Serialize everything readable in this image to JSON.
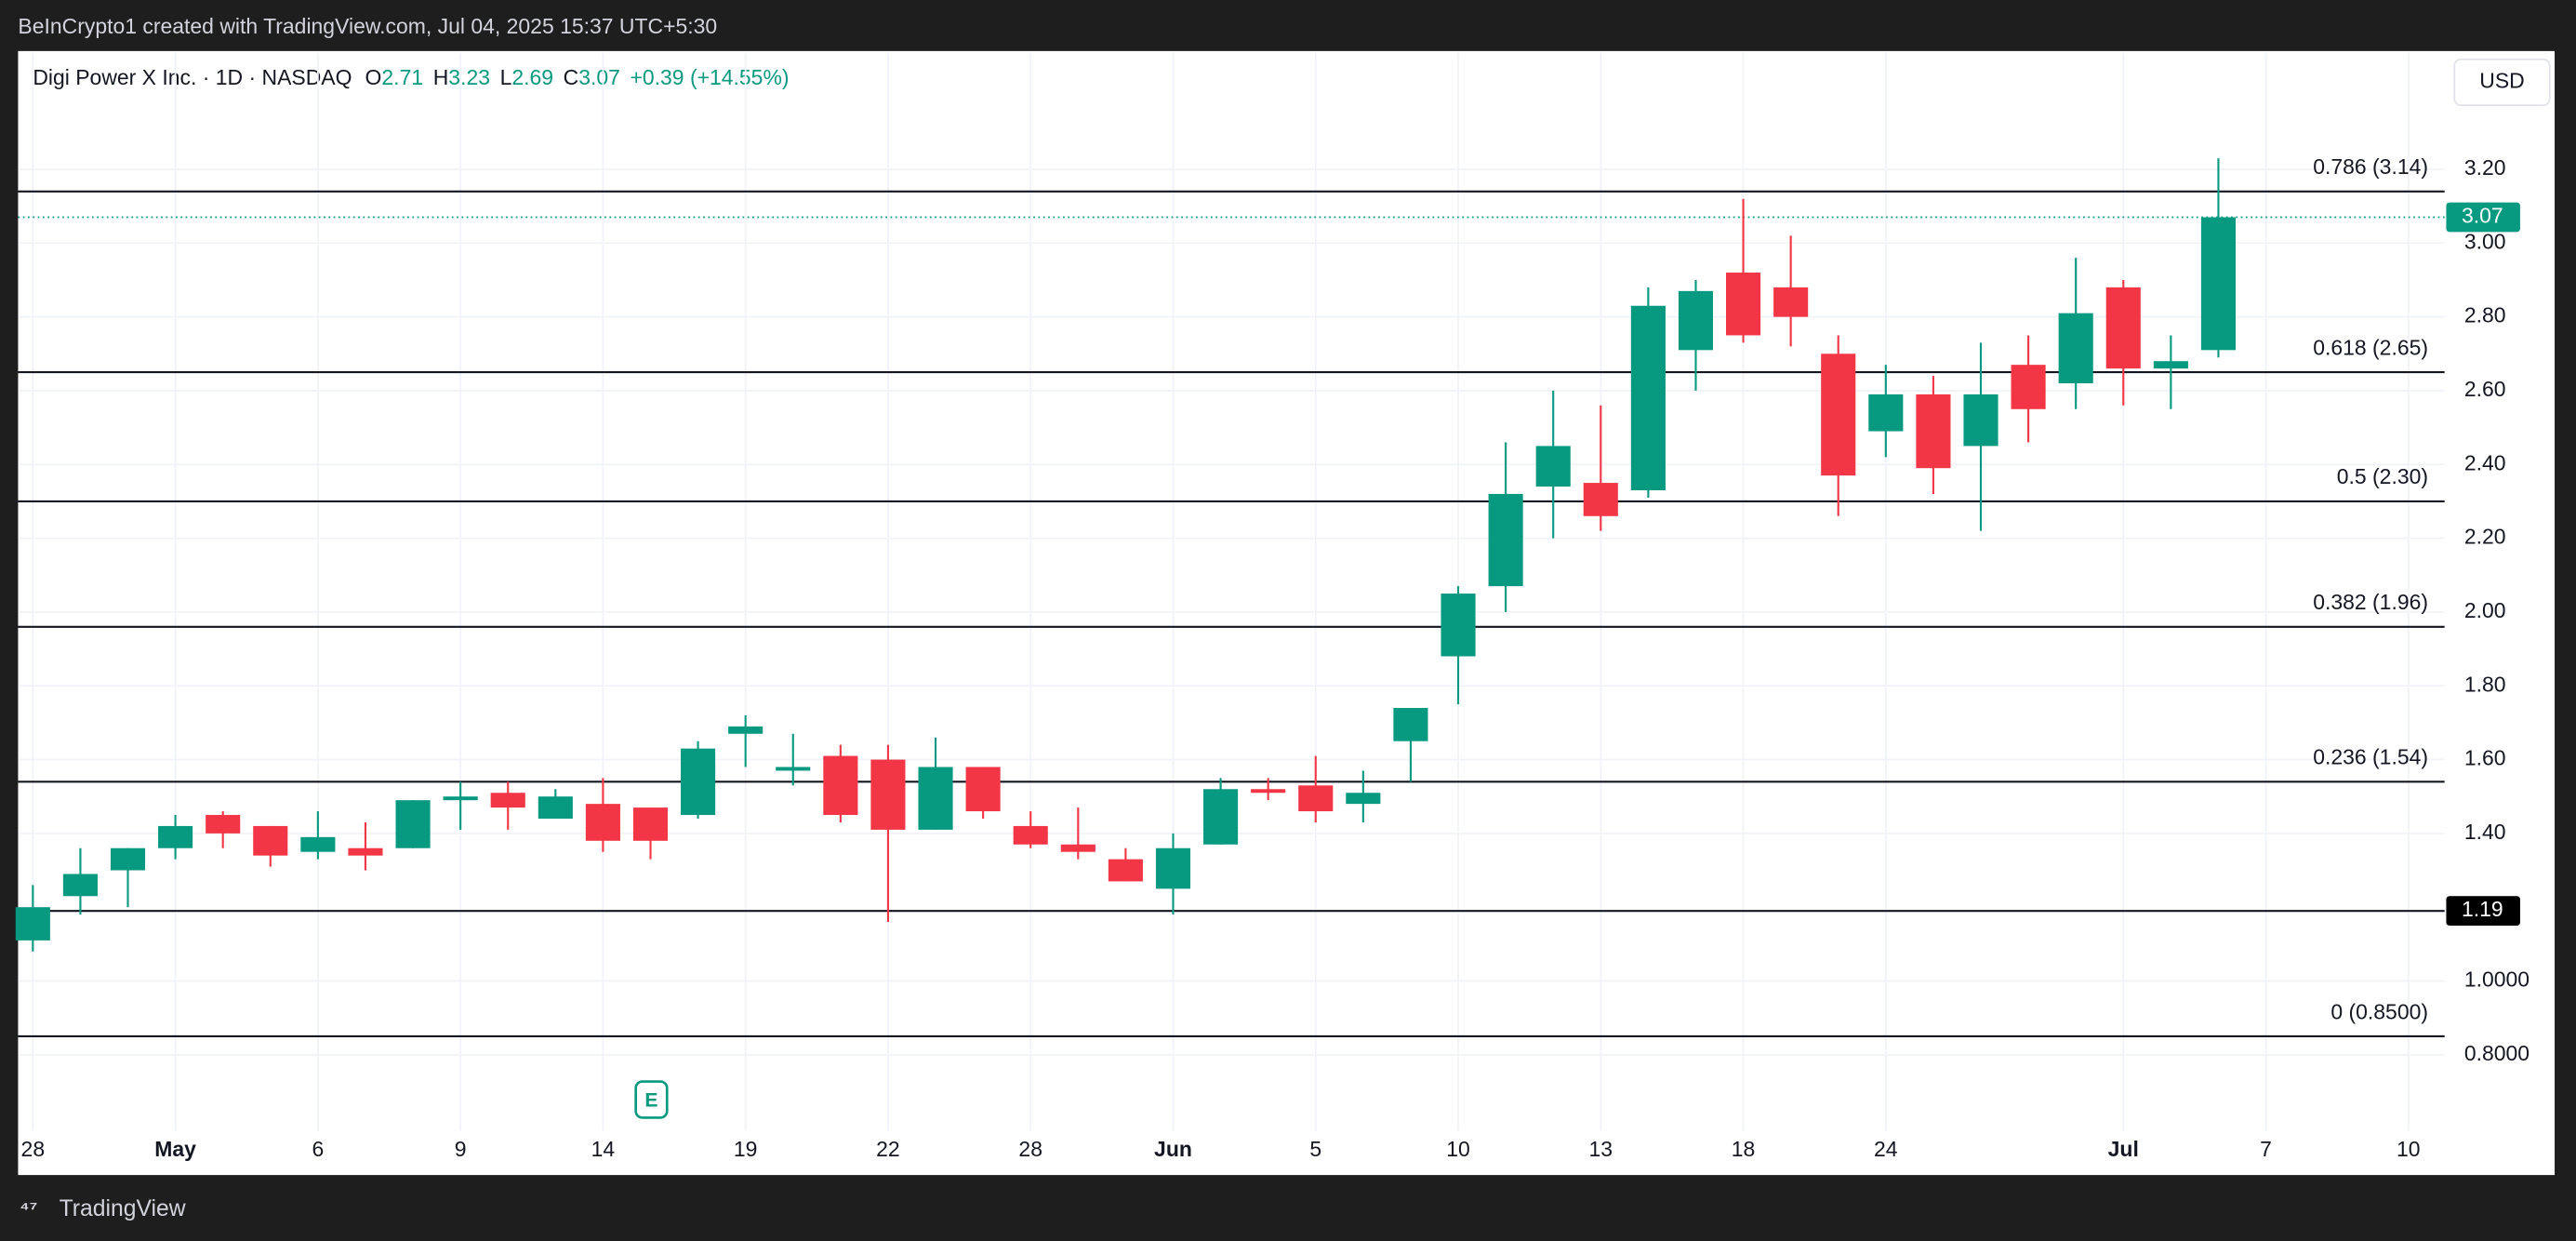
{
  "header": {
    "attribution": "BeInCrypto1 created with TradingView.com, Jul 04, 2025 15:37 UTC+5:30",
    "currency": "USD"
  },
  "footer": {
    "brand": "TradingView"
  },
  "chart_data": {
    "type": "candlestick",
    "title": "Digi Power X Inc. · 1D · NASDAQ",
    "legend": [
      {
        "label": "O",
        "value": 2.71
      },
      {
        "label": "H",
        "value": 3.23
      },
      {
        "label": "L",
        "value": 2.69
      },
      {
        "label": "C",
        "value": 3.07
      }
    ],
    "change": "+0.39 (+14.55%)",
    "earnings_marker": "E",
    "up_color": "#089981",
    "down_color": "#f23645",
    "categories": [
      "28",
      null,
      null,
      "May",
      null,
      null,
      "6",
      null,
      null,
      "9",
      null,
      null,
      "14",
      null,
      null,
      "19",
      null,
      null,
      "22",
      null,
      null,
      "28",
      null,
      null,
      "Jun",
      null,
      null,
      "5",
      null,
      null,
      "10",
      null,
      null,
      "13",
      null,
      null,
      "18",
      null,
      null,
      "24",
      null,
      null,
      null,
      null,
      "Jul",
      null,
      null,
      "7",
      null,
      null,
      "10"
    ],
    "open": [
      1.11,
      1.23,
      1.3,
      1.36,
      1.45,
      1.42,
      1.35,
      1.36,
      1.36,
      1.49,
      1.51,
      1.44,
      1.48,
      1.47,
      1.45,
      1.67,
      1.57,
      1.61,
      1.6,
      1.41,
      1.58,
      1.42,
      1.37,
      1.33,
      1.25,
      1.37,
      1.52,
      1.53,
      1.48,
      1.65,
      1.88,
      2.07,
      2.34,
      2.35,
      2.33,
      2.71,
      2.92,
      2.88,
      2.7,
      2.49,
      2.59,
      2.45,
      2.67,
      2.62,
      2.88,
      2.66,
      2.71,
      null,
      null,
      null,
      null
    ],
    "high": [
      1.26,
      1.36,
      1.36,
      1.45,
      1.46,
      1.42,
      1.46,
      1.43,
      1.49,
      1.54,
      1.54,
      1.52,
      1.55,
      1.47,
      1.65,
      1.72,
      1.67,
      1.64,
      1.64,
      1.66,
      1.58,
      1.46,
      1.47,
      1.36,
      1.4,
      1.55,
      1.55,
      1.61,
      1.57,
      1.74,
      2.07,
      2.46,
      2.6,
      2.56,
      2.88,
      2.9,
      3.12,
      3.02,
      2.75,
      2.67,
      2.64,
      2.73,
      2.75,
      2.96,
      2.9,
      2.75,
      3.23,
      null,
      null,
      null,
      null
    ],
    "low": [
      1.08,
      1.18,
      1.2,
      1.33,
      1.36,
      1.31,
      1.33,
      1.3,
      1.36,
      1.41,
      1.41,
      1.44,
      1.35,
      1.33,
      1.44,
      1.58,
      1.53,
      1.43,
      1.16,
      1.41,
      1.44,
      1.36,
      1.33,
      1.27,
      1.18,
      1.37,
      1.49,
      1.43,
      1.43,
      1.54,
      1.75,
      2.0,
      2.2,
      2.22,
      2.31,
      2.6,
      2.73,
      2.72,
      2.26,
      2.42,
      2.32,
      2.22,
      2.46,
      2.55,
      2.56,
      2.55,
      2.69,
      null,
      null,
      null,
      null
    ],
    "close": [
      1.2,
      1.29,
      1.36,
      1.42,
      1.4,
      1.34,
      1.39,
      1.34,
      1.49,
      1.5,
      1.47,
      1.5,
      1.38,
      1.38,
      1.63,
      1.69,
      1.58,
      1.45,
      1.41,
      1.58,
      1.46,
      1.37,
      1.35,
      1.27,
      1.36,
      1.52,
      1.51,
      1.46,
      1.51,
      1.74,
      2.05,
      2.32,
      2.45,
      2.26,
      2.83,
      2.87,
      2.75,
      2.8,
      2.37,
      2.59,
      2.39,
      2.59,
      2.55,
      2.81,
      2.66,
      2.68,
      3.07,
      null,
      null,
      null,
      null
    ],
    "ylim": [
      0.594,
      3.516
    ],
    "yticks": [
      {
        "value": 0.8,
        "label": "0.8000"
      },
      {
        "value": 1,
        "label": "1.0000"
      },
      {
        "value": 1.4,
        "label": "1.40"
      },
      {
        "value": 1.6,
        "label": "1.60"
      },
      {
        "value": 1.8,
        "label": "1.80"
      },
      {
        "value": 2,
        "label": "2.00"
      },
      {
        "value": 2.2,
        "label": "2.20"
      },
      {
        "value": 2.4,
        "label": "2.40"
      },
      {
        "value": 2.6,
        "label": "2.60"
      },
      {
        "value": 2.8,
        "label": "2.80"
      },
      {
        "value": 3,
        "label": "3.00"
      },
      {
        "value": 3.2,
        "label": "3.20"
      }
    ],
    "grid": true,
    "fib_levels": [
      {
        "value": 3.14,
        "label": "0.786 (3.14)"
      },
      {
        "value": 2.65,
        "label": "0.618 (2.65)"
      },
      {
        "value": 2.3,
        "label": "0.5 (2.30)"
      },
      {
        "value": 1.96,
        "label": "0.382 (1.96)"
      },
      {
        "value": 1.54,
        "label": "0.236 (1.54)"
      },
      {
        "value": 0.85,
        "label": "0 (0.8500)"
      }
    ],
    "support_level": 1.19,
    "last_price": 3.07
  }
}
